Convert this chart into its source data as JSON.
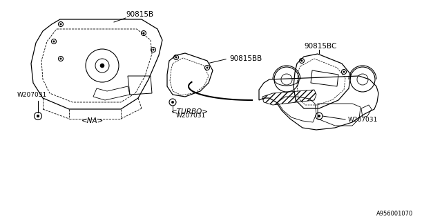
{
  "background_color": "#ffffff",
  "line_color": "#000000",
  "text_color": "#000000",
  "diagram_id": "A956001070",
  "bolt_label": "W207031",
  "na_label": "<NA>",
  "turbo_label": "<TURBO>",
  "label_90815B": "90815B",
  "label_90815BB": "90815BB",
  "label_90815BC": "90815BC",
  "font_size": 7.5,
  "font_size_small": 6.5
}
